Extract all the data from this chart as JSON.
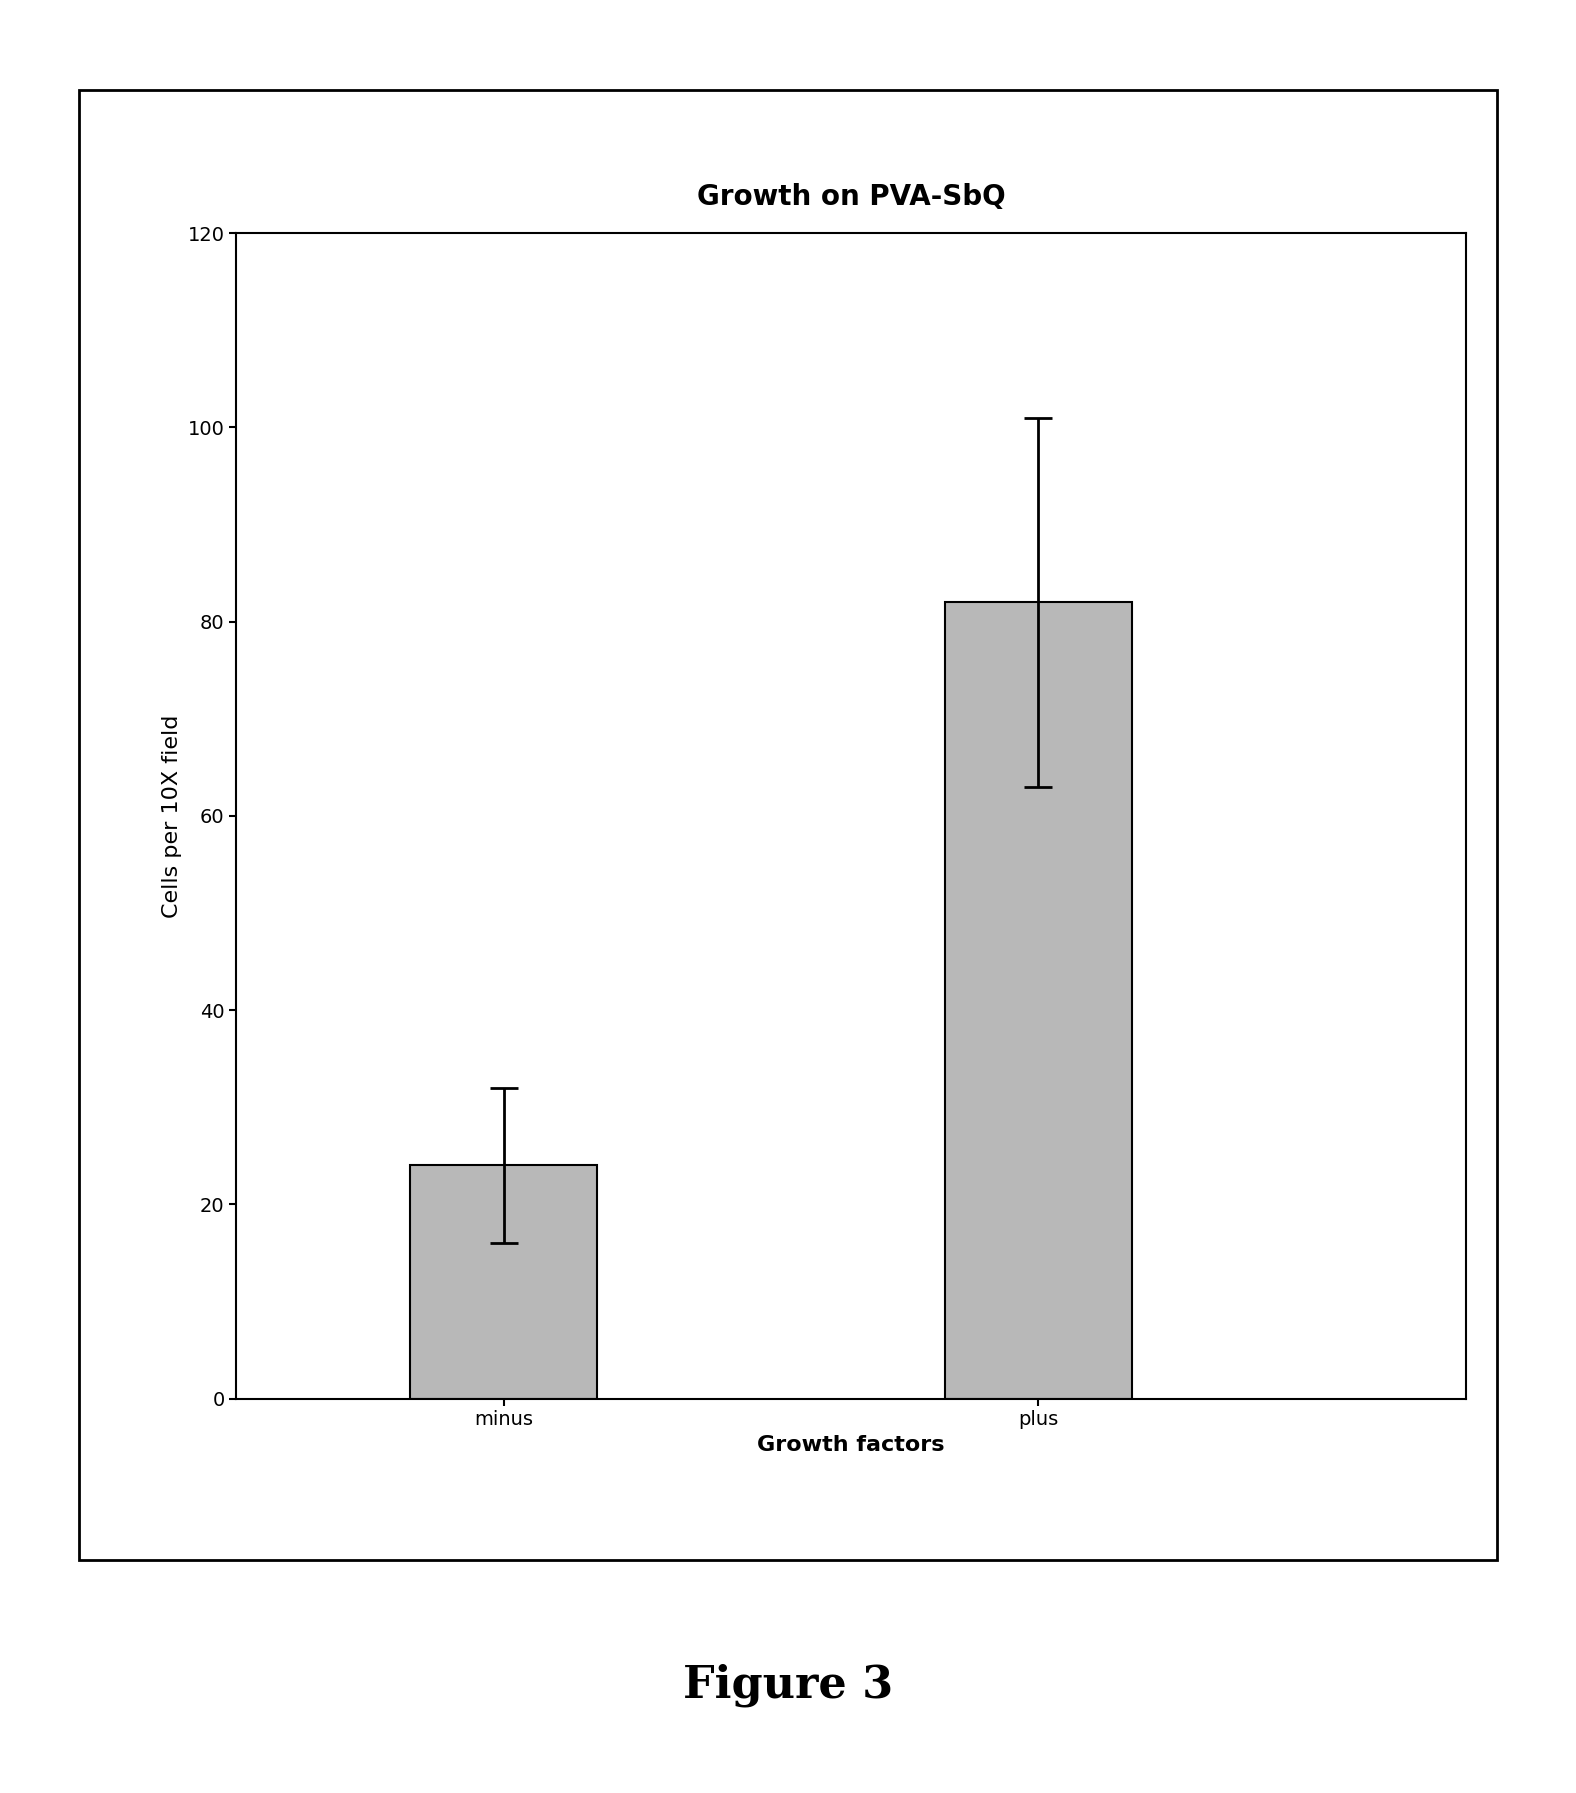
{
  "title": "Growth on PVA-SbQ",
  "categories": [
    "minus",
    "plus"
  ],
  "values": [
    24,
    82
  ],
  "errors": [
    8,
    19
  ],
  "xlabel": "Growth factors",
  "ylabel": "Cells per 10X field",
  "ylim": [
    0,
    120
  ],
  "yticks": [
    0,
    20,
    40,
    60,
    80,
    100,
    120
  ],
  "bar_color": "#b8b8b8",
  "bar_edgecolor": "#000000",
  "bar_width": 0.35,
  "figure_caption": "Figure 3",
  "title_fontsize": 20,
  "label_fontsize": 16,
  "tick_fontsize": 14,
  "caption_fontsize": 32,
  "background_color": "#ffffff"
}
